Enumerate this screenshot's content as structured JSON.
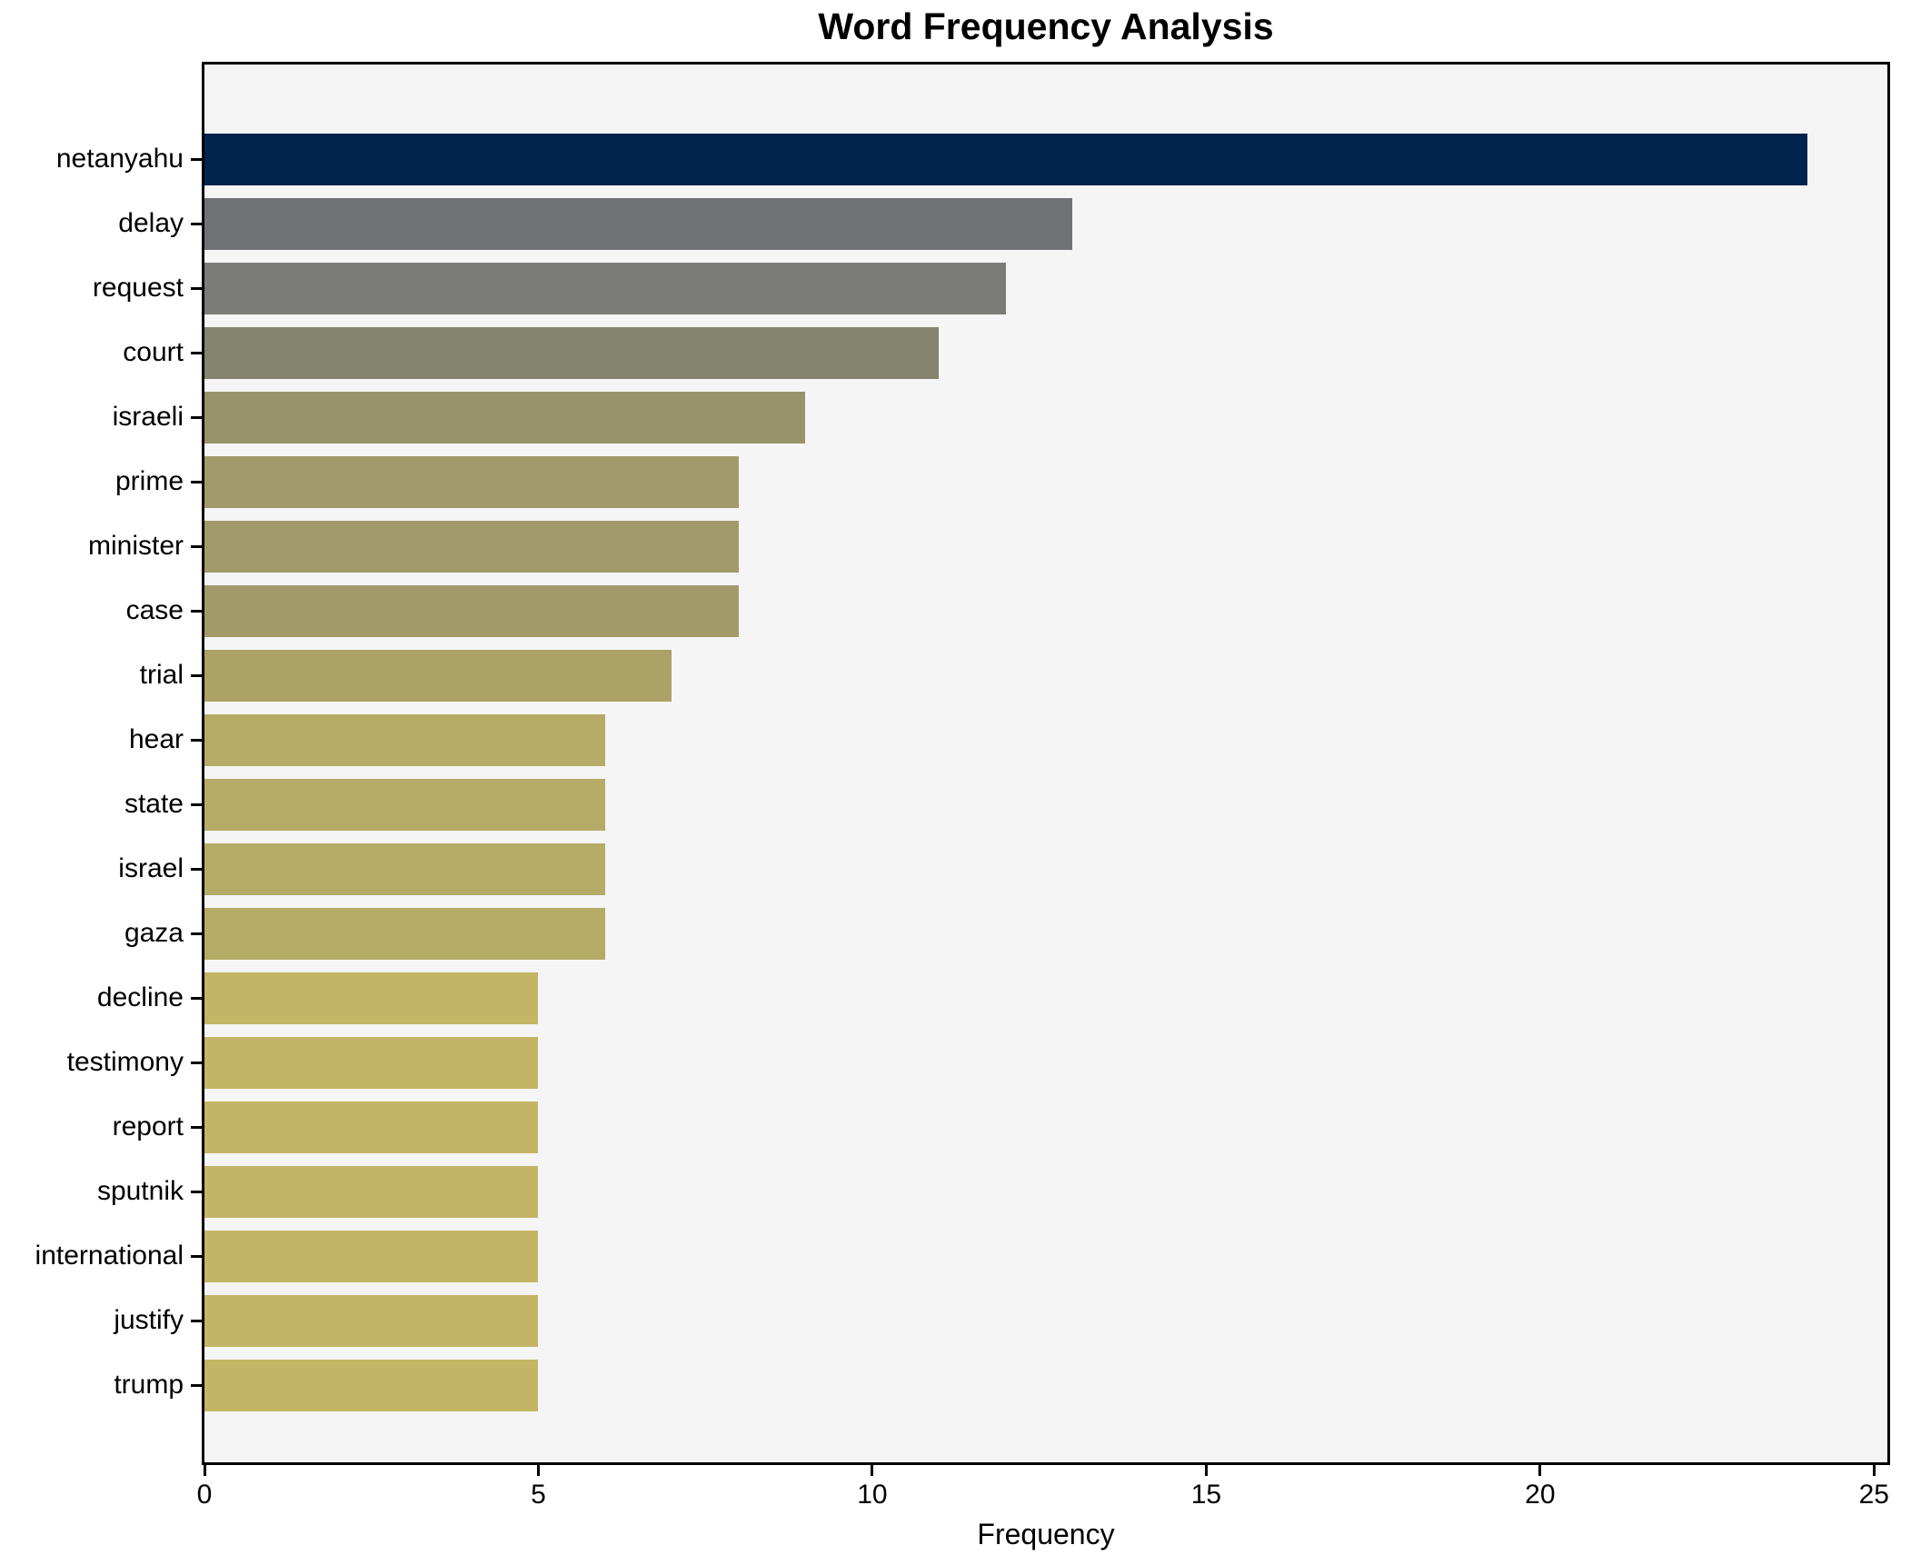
{
  "title": "Word Frequency Analysis",
  "chart_data": {
    "type": "bar",
    "orientation": "horizontal",
    "title": "Word Frequency Analysis",
    "xlabel": "Frequency",
    "ylabel": "",
    "categories": [
      "netanyahu",
      "delay",
      "request",
      "court",
      "israeli",
      "prime",
      "minister",
      "case",
      "trial",
      "hear",
      "state",
      "israel",
      "gaza",
      "decline",
      "testimony",
      "report",
      "sputnik",
      "international",
      "justify",
      "trump"
    ],
    "values": [
      24,
      13,
      12,
      11,
      9,
      8,
      8,
      8,
      7,
      6,
      6,
      6,
      6,
      5,
      5,
      5,
      5,
      5,
      5,
      5
    ],
    "bar_colors": [
      "#02234e",
      "#707276",
      "#7b7c77",
      "#84846f",
      "#99936c",
      "#a29a6a",
      "#a29a6a",
      "#a39a69",
      "#ada266",
      "#b5ab67",
      "#b5ab67",
      "#b5ab67",
      "#b5ab67",
      "#c3b565",
      "#c3b565",
      "#c3b565",
      "#c3b565",
      "#c3b565",
      "#c3b565",
      "#c3b565"
    ],
    "x_ticks": [
      0,
      5,
      10,
      15,
      20,
      25
    ],
    "xlim": [
      0,
      25.2
    ],
    "grid": false,
    "legend": "none",
    "plot_background": "#f5f5f6",
    "figure_background": "#ffffff",
    "spine_color": "#000000"
  }
}
